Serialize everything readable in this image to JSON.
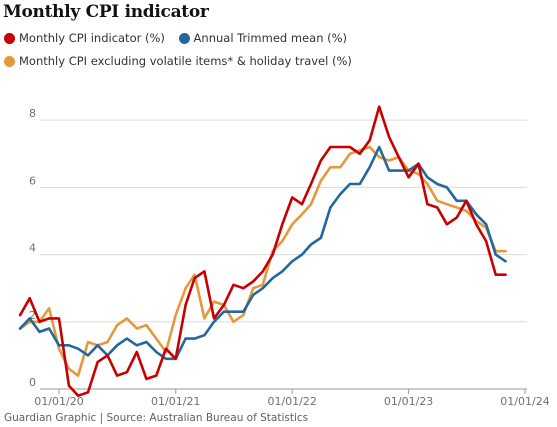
{
  "chart_data": {
    "type": "line",
    "title": "Monthly CPI indicator",
    "xlabel": "",
    "ylabel": "",
    "ylim": [
      0,
      8.6
    ],
    "xlim": [
      "2019-10-01",
      "2024-01-01"
    ],
    "x_ticks": [
      "01/01/20",
      "01/01/21",
      "01/01/22",
      "01/01/23",
      "01/01/24"
    ],
    "y_ticks": [
      0,
      2,
      4,
      6,
      8
    ],
    "grid": true,
    "legend_position": "top-left",
    "source": "Guardian Graphic | Source: Australian Bureau of Statistics",
    "series": [
      {
        "name": "Monthly CPI indicator (%)",
        "color": "#c70000",
        "points": [
          [
            "2019-09-01",
            2.2
          ],
          [
            "2019-10-01",
            2.7
          ],
          [
            "2019-11-01",
            2.0
          ],
          [
            "2019-12-01",
            2.1
          ],
          [
            "2020-01-01",
            2.1
          ],
          [
            "2020-02-01",
            0.1
          ],
          [
            "2020-03-01",
            -0.2
          ],
          [
            "2020-04-01",
            -0.1
          ],
          [
            "2020-05-01",
            0.8
          ],
          [
            "2020-06-01",
            1.0
          ],
          [
            "2020-07-01",
            0.4
          ],
          [
            "2020-08-01",
            0.5
          ],
          [
            "2020-09-01",
            1.1
          ],
          [
            "2020-10-01",
            0.3
          ],
          [
            "2020-11-01",
            0.4
          ],
          [
            "2020-12-01",
            1.2
          ],
          [
            "2021-01-01",
            0.9
          ],
          [
            "2021-02-01",
            2.5
          ],
          [
            "2021-03-01",
            3.3
          ],
          [
            "2021-04-01",
            3.5
          ],
          [
            "2021-05-01",
            2.1
          ],
          [
            "2021-06-01",
            2.5
          ],
          [
            "2021-07-01",
            3.1
          ],
          [
            "2021-08-01",
            3.0
          ],
          [
            "2021-09-01",
            3.2
          ],
          [
            "2021-10-01",
            3.5
          ],
          [
            "2021-11-01",
            4.0
          ],
          [
            "2021-12-01",
            4.9
          ],
          [
            "2022-01-01",
            5.7
          ],
          [
            "2022-02-01",
            5.5
          ],
          [
            "2022-03-01",
            6.1
          ],
          [
            "2022-04-01",
            6.8
          ],
          [
            "2022-05-01",
            7.2
          ],
          [
            "2022-06-01",
            7.2
          ],
          [
            "2022-07-01",
            7.2
          ],
          [
            "2022-08-01",
            7.0
          ],
          [
            "2022-09-01",
            7.4
          ],
          [
            "2022-10-01",
            8.4
          ],
          [
            "2022-11-01",
            7.5
          ],
          [
            "2022-12-01",
            6.9
          ],
          [
            "2023-01-01",
            6.3
          ],
          [
            "2023-02-01",
            6.7
          ],
          [
            "2023-03-01",
            5.5
          ],
          [
            "2023-04-01",
            5.4
          ],
          [
            "2023-05-01",
            4.9
          ],
          [
            "2023-06-01",
            5.1
          ],
          [
            "2023-07-01",
            5.6
          ],
          [
            "2023-08-01",
            4.9
          ],
          [
            "2023-09-01",
            4.4
          ],
          [
            "2023-10-01",
            3.4
          ],
          [
            "2023-11-01",
            3.4
          ]
        ]
      },
      {
        "name": "Annual Trimmed mean (%)",
        "color": "#22689c",
        "points": [
          [
            "2019-09-01",
            1.8
          ],
          [
            "2019-10-01",
            2.1
          ],
          [
            "2019-11-01",
            1.7
          ],
          [
            "2019-12-01",
            1.8
          ],
          [
            "2020-01-01",
            1.3
          ],
          [
            "2020-02-01",
            1.3
          ],
          [
            "2020-03-01",
            1.2
          ],
          [
            "2020-04-01",
            1.0
          ],
          [
            "2020-05-01",
            1.3
          ],
          [
            "2020-06-01",
            1.0
          ],
          [
            "2020-07-01",
            1.3
          ],
          [
            "2020-08-01",
            1.5
          ],
          [
            "2020-09-01",
            1.3
          ],
          [
            "2020-10-01",
            1.4
          ],
          [
            "2020-11-01",
            1.1
          ],
          [
            "2020-12-01",
            0.9
          ],
          [
            "2021-01-01",
            0.9
          ],
          [
            "2021-02-01",
            1.5
          ],
          [
            "2021-03-01",
            1.5
          ],
          [
            "2021-04-01",
            1.6
          ],
          [
            "2021-05-01",
            2.0
          ],
          [
            "2021-06-01",
            2.3
          ],
          [
            "2021-07-01",
            2.3
          ],
          [
            "2021-08-01",
            2.3
          ],
          [
            "2021-09-01",
            2.8
          ],
          [
            "2021-10-01",
            3.0
          ],
          [
            "2021-11-01",
            3.3
          ],
          [
            "2021-12-01",
            3.5
          ],
          [
            "2022-01-01",
            3.8
          ],
          [
            "2022-02-01",
            4.0
          ],
          [
            "2022-03-01",
            4.3
          ],
          [
            "2022-04-01",
            4.5
          ],
          [
            "2022-05-01",
            5.4
          ],
          [
            "2022-06-01",
            5.8
          ],
          [
            "2022-07-01",
            6.1
          ],
          [
            "2022-08-01",
            6.1
          ],
          [
            "2022-09-01",
            6.6
          ],
          [
            "2022-10-01",
            7.2
          ],
          [
            "2022-11-01",
            6.5
          ],
          [
            "2022-12-01",
            6.5
          ],
          [
            "2023-01-01",
            6.5
          ],
          [
            "2023-02-01",
            6.7
          ],
          [
            "2023-03-01",
            6.3
          ],
          [
            "2023-04-01",
            6.1
          ],
          [
            "2023-05-01",
            6.0
          ],
          [
            "2023-06-01",
            5.6
          ],
          [
            "2023-07-01",
            5.6
          ],
          [
            "2023-08-01",
            5.2
          ],
          [
            "2023-09-01",
            4.9
          ],
          [
            "2023-10-01",
            4.0
          ],
          [
            "2023-11-01",
            3.8
          ]
        ]
      },
      {
        "name": "Monthly CPI excluding volatile items* & holiday travel (%)",
        "color": "#e6983c",
        "points": [
          [
            "2019-09-01",
            1.8
          ],
          [
            "2019-10-01",
            2.0
          ],
          [
            "2019-11-01",
            2.0
          ],
          [
            "2019-12-01",
            2.4
          ],
          [
            "2020-01-01",
            1.2
          ],
          [
            "2020-02-01",
            0.6
          ],
          [
            "2020-03-01",
            0.4
          ],
          [
            "2020-04-01",
            1.4
          ],
          [
            "2020-05-01",
            1.3
          ],
          [
            "2020-06-01",
            1.4
          ],
          [
            "2020-07-01",
            1.9
          ],
          [
            "2020-08-01",
            2.1
          ],
          [
            "2020-09-01",
            1.8
          ],
          [
            "2020-10-01",
            1.9
          ],
          [
            "2020-11-01",
            1.5
          ],
          [
            "2020-12-01",
            1.1
          ],
          [
            "2021-01-01",
            2.2
          ],
          [
            "2021-02-01",
            3.0
          ],
          [
            "2021-03-01",
            3.4
          ],
          [
            "2021-04-01",
            2.1
          ],
          [
            "2021-05-01",
            2.6
          ],
          [
            "2021-06-01",
            2.5
          ],
          [
            "2021-07-01",
            2.0
          ],
          [
            "2021-08-01",
            2.2
          ],
          [
            "2021-09-01",
            3.0
          ],
          [
            "2021-10-01",
            3.1
          ],
          [
            "2021-11-01",
            4.1
          ],
          [
            "2021-12-01",
            4.4
          ],
          [
            "2022-01-01",
            4.9
          ],
          [
            "2022-02-01",
            5.2
          ],
          [
            "2022-03-01",
            5.5
          ],
          [
            "2022-04-01",
            6.2
          ],
          [
            "2022-05-01",
            6.6
          ],
          [
            "2022-06-01",
            6.6
          ],
          [
            "2022-07-01",
            7.0
          ],
          [
            "2022-08-01",
            7.1
          ],
          [
            "2022-09-01",
            7.2
          ],
          [
            "2022-10-01",
            6.9
          ],
          [
            "2022-11-01",
            6.8
          ],
          [
            "2022-12-01",
            6.9
          ],
          [
            "2023-01-01",
            6.5
          ],
          [
            "2023-02-01",
            6.4
          ],
          [
            "2023-03-01",
            6.1
          ],
          [
            "2023-04-01",
            5.6
          ],
          [
            "2023-05-01",
            5.5
          ],
          [
            "2023-06-01",
            5.4
          ],
          [
            "2023-07-01",
            5.3
          ],
          [
            "2023-08-01",
            5.0
          ],
          [
            "2023-09-01",
            4.8
          ],
          [
            "2023-10-01",
            4.1
          ],
          [
            "2023-11-01",
            4.1
          ]
        ]
      }
    ]
  }
}
